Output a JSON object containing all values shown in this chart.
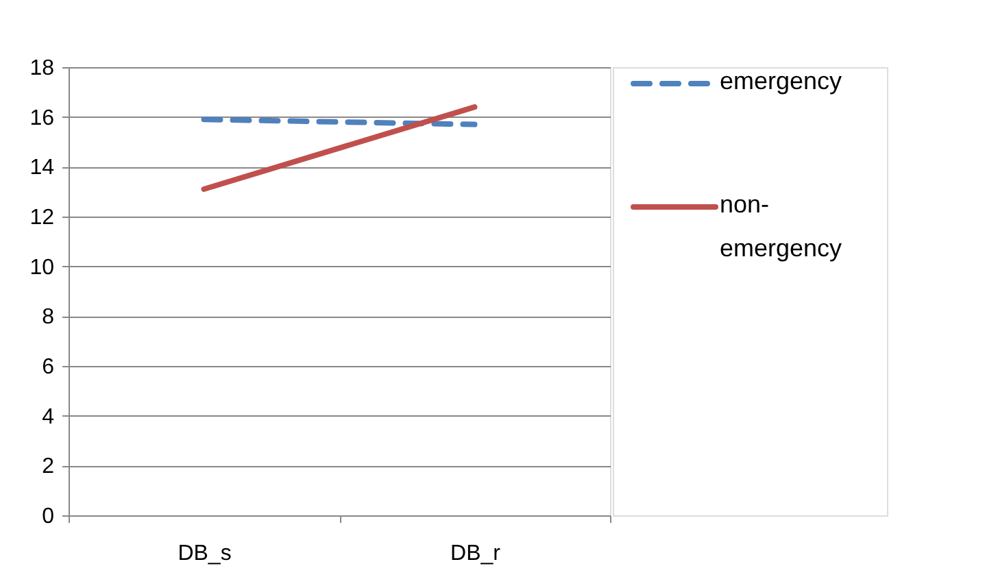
{
  "chart_data": {
    "type": "line",
    "categories": [
      "DB_s",
      "DB_r"
    ],
    "series": [
      {
        "name": "emergency",
        "color": "#4f81bd",
        "values": [
          15.9,
          15.7
        ],
        "line_style": "dashed"
      },
      {
        "name": "non-emergency",
        "color": "#c0504d",
        "values": [
          13.1,
          16.4
        ],
        "line_style": "solid"
      }
    ],
    "ylim": [
      0,
      18
    ],
    "yticks": [
      0,
      2,
      4,
      6,
      8,
      10,
      12,
      14,
      16,
      18
    ],
    "grid": "y",
    "legend": "right",
    "marker": "none"
  }
}
